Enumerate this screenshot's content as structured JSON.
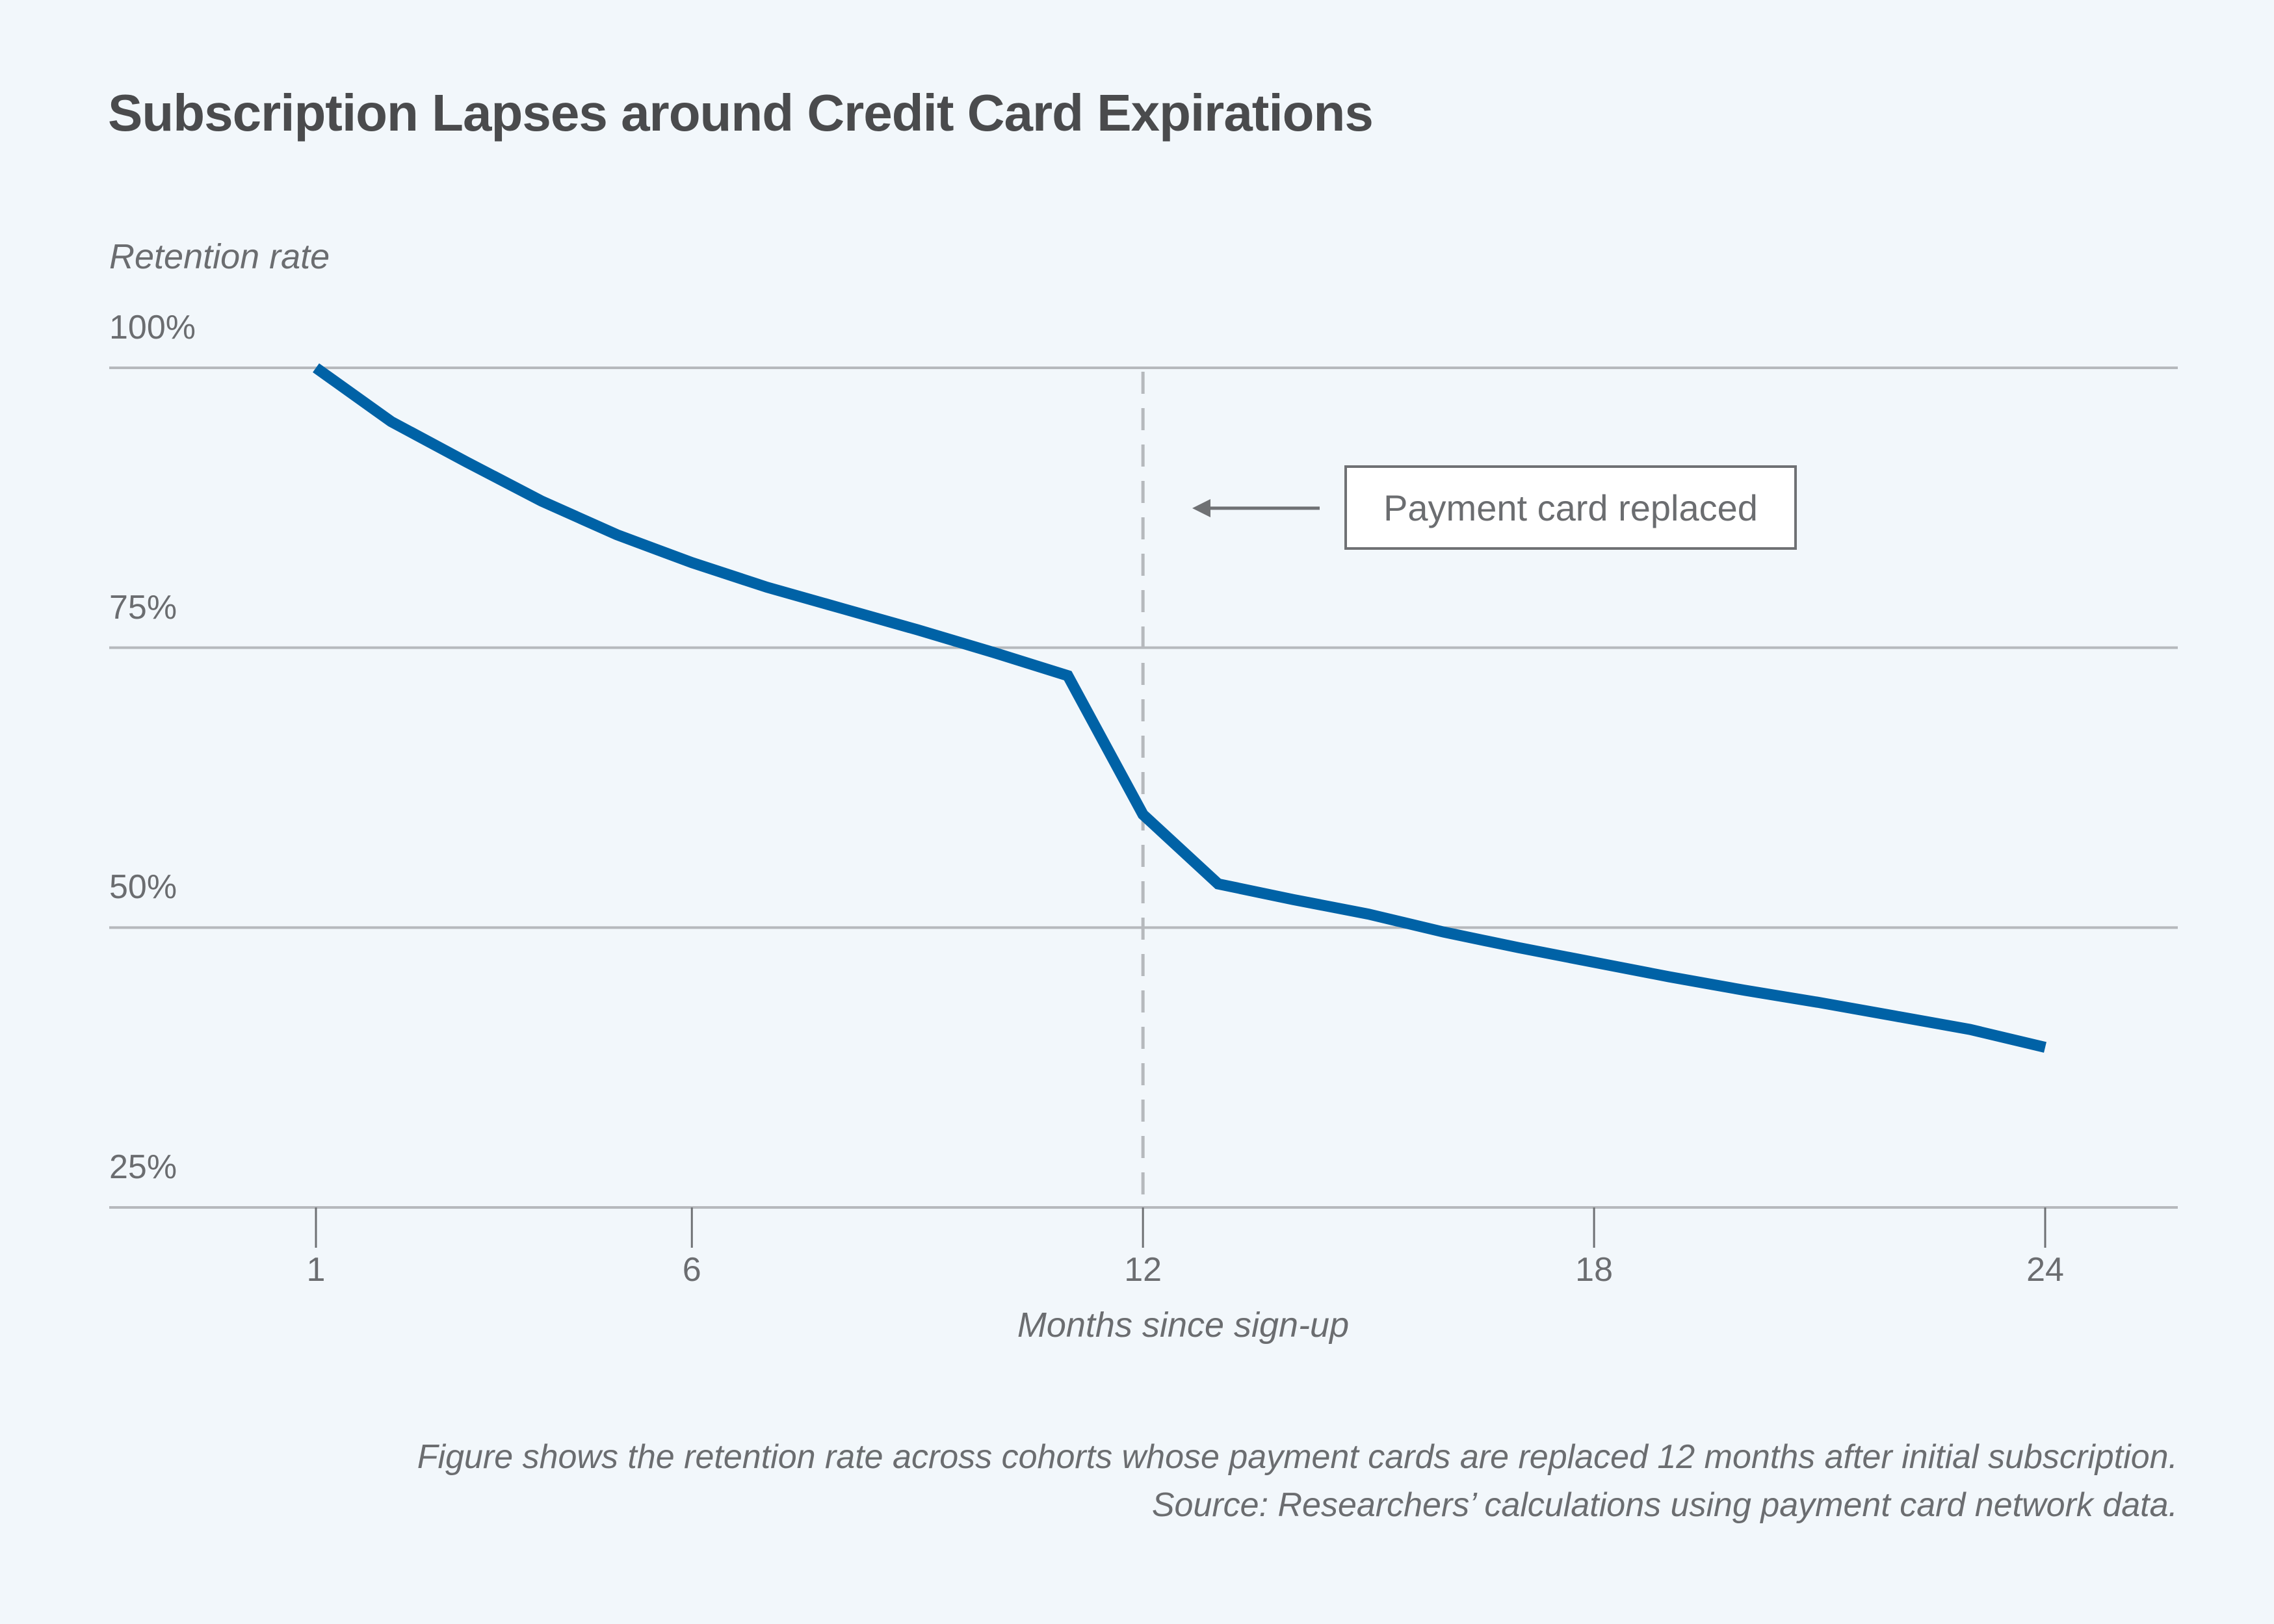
{
  "chart_data": {
    "type": "line",
    "title": "Subscription Lapses around Credit Card Expirations",
    "ylabel": "Retention rate",
    "xlabel": "Months since sign-up",
    "ylim": [
      25,
      100
    ],
    "xlim": [
      -1.75,
      26.5
    ],
    "yticks": [
      {
        "value": 100,
        "label": "100%"
      },
      {
        "value": 75,
        "label": "75%"
      },
      {
        "value": 50,
        "label": "50%"
      },
      {
        "value": 25,
        "label": "25%"
      }
    ],
    "xticks": [
      {
        "value": 1,
        "label": "1"
      },
      {
        "value": 6,
        "label": "6"
      },
      {
        "value": 12,
        "label": "12"
      },
      {
        "value": 18,
        "label": "18"
      },
      {
        "value": 24,
        "label": "24"
      }
    ],
    "grid": true,
    "series": [
      {
        "name": "Retention rate",
        "color": "#0062a6",
        "x": [
          1,
          2,
          3,
          4,
          5,
          6,
          7,
          8,
          9,
          10,
          11,
          12,
          13,
          14,
          15,
          16,
          17,
          18,
          19,
          20,
          21,
          22,
          23,
          24
        ],
        "values": [
          100,
          95.2,
          91.6,
          88.1,
          85.1,
          82.6,
          80.4,
          78.5,
          76.6,
          74.6,
          72.5,
          60.1,
          53.9,
          52.5,
          51.2,
          49.6,
          48.2,
          46.9,
          45.6,
          44.4,
          43.3,
          42.1,
          40.9,
          39.3
        ]
      }
    ],
    "reference_line": {
      "x": 12,
      "style": "dashed",
      "color": "#b6b9bd"
    },
    "annotations": [
      {
        "text": "Payment card replaced",
        "points_to_x": 12
      }
    ]
  },
  "footer": {
    "note": "Figure shows the retention rate across cohorts whose payment cards are replaced 12 months after initial subscription.",
    "source": "Source: Researchers’ calculations using payment card network data."
  },
  "colors": {
    "background": "#f2f7fb",
    "line": "#0062a6",
    "grid": "#b6b9bd",
    "text": "#6b6d70"
  }
}
